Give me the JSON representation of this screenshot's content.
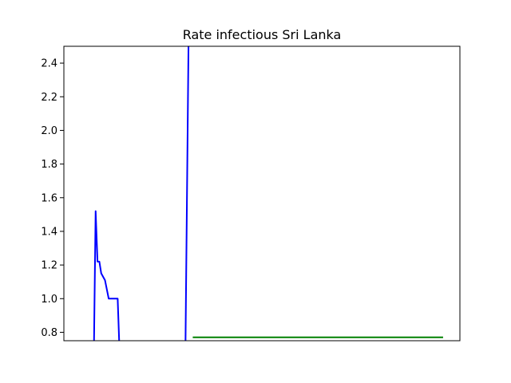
{
  "chart_data": {
    "type": "line",
    "title": "Rate infectious Sri Lanka",
    "xlabel": "",
    "ylabel": "",
    "xlim": [
      0,
      106
    ],
    "ylim": [
      0.75,
      2.5
    ],
    "yticks": [
      0.8,
      1.0,
      1.2,
      1.4,
      1.6,
      1.8,
      2.0,
      2.2,
      2.4
    ],
    "ytick_labels": [
      "0.8",
      "1.0",
      "1.2",
      "1.4",
      "1.6",
      "1.8",
      "2.0",
      "2.2",
      "2.4"
    ],
    "grid": false,
    "show_xticks": false,
    "series": [
      {
        "color": "#0000ff",
        "x": [
          8,
          8.5,
          9,
          9.5,
          10,
          11,
          12,
          13,
          14,
          14.4,
          15,
          16,
          17
        ],
        "y": [
          0.62,
          1.52,
          1.22,
          1.22,
          1.15,
          1.11,
          1.0,
          1.0,
          1.0,
          1.0,
          0.62,
          null,
          null
        ]
      },
      {
        "color": "#0000ff",
        "x": [
          32.5,
          33.4
        ],
        "y": [
          0.62,
          2.6
        ]
      },
      {
        "color": "#008000",
        "x": [
          34.5,
          101.5
        ],
        "y": [
          0.77,
          0.77
        ]
      }
    ]
  }
}
